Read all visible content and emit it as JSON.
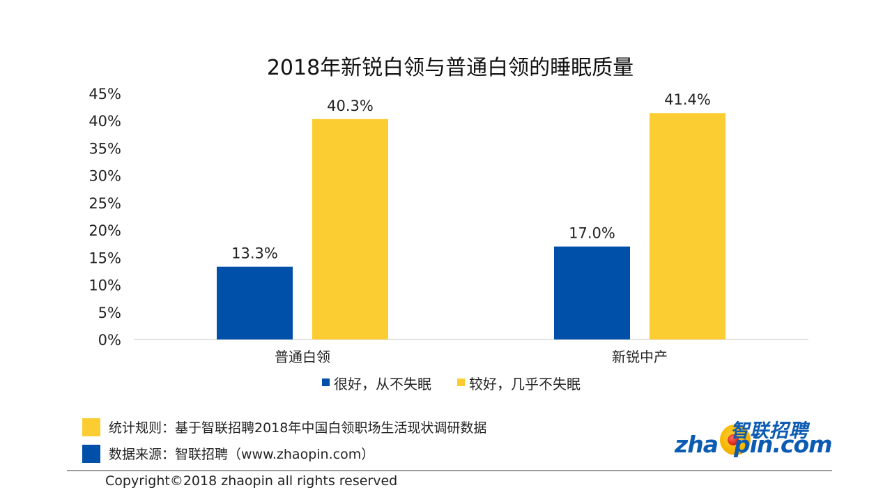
{
  "chart_data": {
    "type": "bar",
    "title": "2018年新锐白领与普通白领的睡眠质量",
    "categories": [
      "普通白领",
      "新锐中产"
    ],
    "series": [
      {
        "name": "很好，从不失眠",
        "values": [
          13.3,
          17.0
        ],
        "labels": [
          "13.3%",
          "17.0%"
        ],
        "color": "#0050a9"
      },
      {
        "name": "较好，几乎不失眠",
        "values": [
          40.3,
          41.4
        ],
        "labels": [
          "40.3%",
          "41.4%"
        ],
        "color": "#fbcd33"
      }
    ],
    "ylim": [
      0,
      45
    ],
    "yticks": [
      "0%",
      "5%",
      "10%",
      "15%",
      "20%",
      "25%",
      "30%",
      "35%",
      "40%",
      "45%"
    ],
    "ytick_values": [
      0,
      5,
      10,
      15,
      20,
      25,
      30,
      35,
      40,
      45
    ],
    "grid": false,
    "legend_position": "bottom"
  },
  "notes": [
    {
      "text": "统计规则：基于智联招聘2018年中国白领职场生活现状调研数据",
      "color": "#fbcd33"
    },
    {
      "text": "数据来源：智联招聘（www.zhaopin.com）",
      "color": "#0050a9"
    }
  ],
  "copyright": "Copyright©2018 zhaopin all rights reserved",
  "logo": {
    "cn": "智联招聘",
    "en_left": "zha",
    "en_right": "pin.com"
  }
}
